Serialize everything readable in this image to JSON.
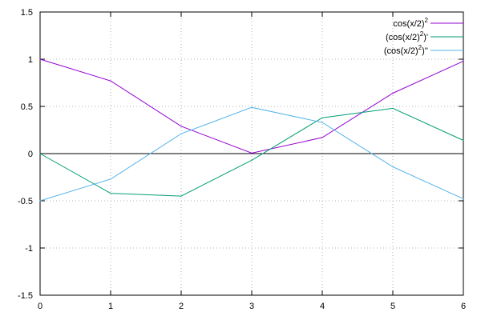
{
  "chart_data": {
    "type": "line",
    "title": "",
    "xlabel": "",
    "ylabel": "",
    "xlim": [
      0,
      6
    ],
    "ylim": [
      -1.5,
      1.5
    ],
    "x_ticks": [
      0,
      1,
      2,
      3,
      4,
      5,
      6
    ],
    "y_ticks": [
      -1.5,
      -1,
      -0.5,
      0,
      0.5,
      1,
      1.5
    ],
    "x_tick_labels": [
      "0",
      "1",
      "2",
      "3",
      "4",
      "5",
      "6"
    ],
    "y_tick_labels": [
      "-1.5",
      "-1",
      "-0.5",
      "0",
      "0.5",
      "1",
      "1.5"
    ],
    "grid": true,
    "zero_line": true,
    "legend_position": "top-right",
    "x": [
      0,
      1,
      2,
      3,
      4,
      5,
      6
    ],
    "series": [
      {
        "name_base": "cos(x/2)",
        "name_sup": "2",
        "name_suffix": "",
        "color": "#9400d3",
        "values": [
          1.0,
          0.77,
          0.29,
          0.005,
          0.17,
          0.64,
          0.98
        ]
      },
      {
        "name_base": "(cos(x/2)",
        "name_sup": "2",
        "name_suffix": ")'",
        "color": "#009e73",
        "values": [
          0.0,
          -0.42,
          -0.45,
          -0.07,
          0.38,
          0.48,
          0.14
        ]
      },
      {
        "name_base": "(cos(x/2)",
        "name_sup": "2",
        "name_suffix": ")''",
        "color": "#56b4e9",
        "values": [
          -0.5,
          -0.27,
          0.21,
          0.49,
          0.33,
          -0.14,
          -0.48
        ]
      }
    ]
  }
}
